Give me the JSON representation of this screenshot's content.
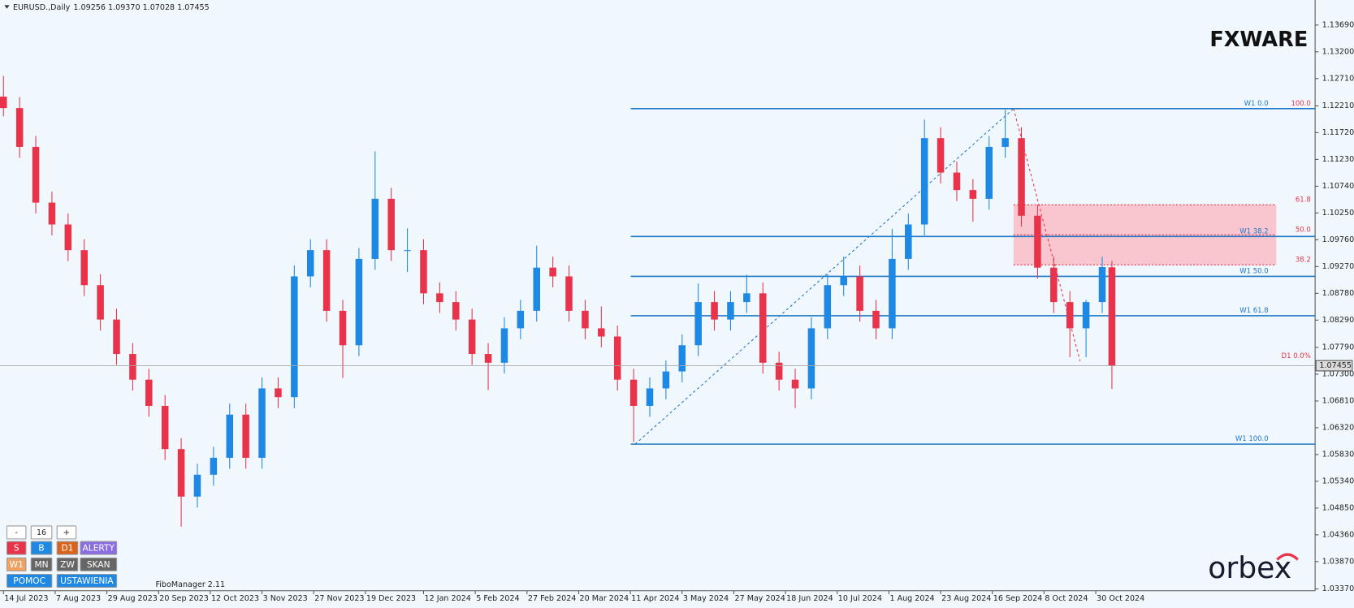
{
  "header": {
    "symbol": "EURUSD.,Daily",
    "ohlc": "1.09256 1.09370 1.07028 1.07455"
  },
  "chart_data": {
    "type": "candlestick",
    "x": [
      "2023-07-14",
      "2023-07-21",
      "2023-07-28",
      "2023-08-04",
      "2023-08-11",
      "2023-08-18",
      "2023-08-25",
      "2023-09-01",
      "2023-09-08",
      "2023-09-15",
      "2023-09-22",
      "2023-09-29",
      "2023-10-06",
      "2023-10-13",
      "2023-10-20",
      "2023-10-27",
      "2023-11-03",
      "2023-11-10",
      "2023-11-17",
      "2023-11-24",
      "2023-12-01",
      "2023-12-08",
      "2023-12-15",
      "2023-12-22",
      "2023-12-29",
      "2024-01-05",
      "2024-01-12",
      "2024-01-19",
      "2024-01-26",
      "2024-02-02",
      "2024-02-09",
      "2024-02-16",
      "2024-02-23",
      "2024-03-01",
      "2024-03-08",
      "2024-03-15",
      "2024-03-22",
      "2024-03-29",
      "2024-04-05",
      "2024-04-12",
      "2024-04-19",
      "2024-04-26",
      "2024-05-03",
      "2024-05-10",
      "2024-05-17",
      "2024-05-24",
      "2024-05-31",
      "2024-06-07",
      "2024-06-14",
      "2024-06-21",
      "2024-06-28",
      "2024-07-05",
      "2024-07-12",
      "2024-07-19",
      "2024-07-26",
      "2024-08-02",
      "2024-08-09",
      "2024-08-16",
      "2024-08-23",
      "2024-08-30",
      "2024-09-06",
      "2024-09-13",
      "2024-09-20",
      "2024-09-27",
      "2024-10-04",
      "2024-10-11",
      "2024-10-18",
      "2024-10-25",
      "2024-11-01",
      "2024-11-06"
    ],
    "open": [
      1.1238,
      1.1217,
      1.1146,
      1.1044,
      1.1004,
      1.0957,
      1.0893,
      1.083,
      1.0767,
      1.072,
      1.0672,
      1.0593,
      1.0506,
      1.0546,
      1.0577,
      1.0656,
      1.0577,
      1.0704,
      1.0688,
      1.0909,
      1.0957,
      1.0846,
      1.0783,
      1.0941,
      1.1051,
      1.0957,
      1.0957,
      1.0878,
      1.0862,
      1.083,
      1.0767,
      1.0751,
      1.0814,
      1.0846,
      1.0925,
      1.0909,
      1.0846,
      1.0814,
      1.0799,
      1.072,
      1.0672,
      1.0704,
      1.0735,
      1.0783,
      1.0862,
      1.083,
      1.0862,
      1.0878,
      1.0751,
      1.072,
      1.0704,
      1.0814,
      1.0893,
      1.0909,
      1.0846,
      1.0814,
      1.0941,
      1.1004,
      1.1162,
      1.1099,
      1.1067,
      1.1051,
      1.1146,
      1.1162,
      1.102,
      1.0925,
      1.0862,
      1.0814,
      1.0862,
      1.09256
    ],
    "high": [
      1.1276,
      1.1237,
      1.1166,
      1.1064,
      1.1024,
      1.0977,
      1.0913,
      1.085,
      1.0787,
      1.074,
      1.0692,
      1.0613,
      1.0566,
      1.0597,
      1.0676,
      1.0676,
      1.0724,
      1.0724,
      1.0929,
      1.0977,
      1.0977,
      1.0866,
      1.0961,
      1.1138,
      1.1071,
      1.0997,
      1.0977,
      1.0898,
      1.0882,
      1.085,
      1.0787,
      1.0834,
      1.0866,
      1.0965,
      1.0945,
      1.0929,
      1.0866,
      1.0854,
      1.0819,
      1.074,
      1.0724,
      1.0755,
      1.0803,
      1.0896,
      1.0882,
      1.0882,
      1.0912,
      1.0898,
      1.0771,
      1.074,
      1.0834,
      1.0913,
      1.0945,
      1.0929,
      1.0866,
      1.0996,
      1.1024,
      1.1196,
      1.1182,
      1.1119,
      1.1087,
      1.1166,
      1.1214,
      1.1182,
      1.104,
      1.0945,
      1.0882,
      1.0866,
      1.0945,
      1.0937
    ],
    "low": [
      1.1202,
      1.1126,
      1.1024,
      1.0984,
      1.0937,
      1.0873,
      1.081,
      1.0747,
      1.07,
      1.0652,
      1.0573,
      1.0451,
      1.0486,
      1.0526,
      1.0557,
      1.0557,
      1.0557,
      1.0668,
      1.0668,
      1.0889,
      1.0826,
      1.0723,
      1.0763,
      1.0921,
      1.0937,
      1.0917,
      1.0858,
      1.0842,
      1.081,
      1.0747,
      1.0701,
      1.0731,
      1.0794,
      1.0826,
      1.0889,
      1.0826,
      1.0794,
      1.0779,
      1.07,
      1.0606,
      1.0652,
      1.0684,
      1.0715,
      1.0763,
      1.081,
      1.081,
      1.0842,
      1.0731,
      1.07,
      1.0668,
      1.0684,
      1.0794,
      1.0873,
      1.0826,
      1.0794,
      1.0794,
      1.0921,
      1.0984,
      1.1079,
      1.1047,
      1.1009,
      1.1031,
      1.1126,
      1.1,
      1.0905,
      1.0842,
      1.0761,
      1.0761,
      1.0842,
      1.07028
    ],
    "close": [
      1.1217,
      1.1146,
      1.1044,
      1.1004,
      1.0957,
      1.0893,
      1.083,
      1.0767,
      1.072,
      1.0672,
      1.0593,
      1.0506,
      1.0546,
      1.0577,
      1.0656,
      1.0577,
      1.0704,
      1.0688,
      1.0909,
      1.0957,
      1.0846,
      1.0783,
      1.0941,
      1.1051,
      1.0957,
      1.0957,
      1.0878,
      1.0862,
      1.083,
      1.0767,
      1.0751,
      1.0814,
      1.0846,
      1.0925,
      1.0909,
      1.0846,
      1.0814,
      1.0799,
      1.072,
      1.0672,
      1.0704,
      1.0735,
      1.0783,
      1.0862,
      1.083,
      1.0862,
      1.0878,
      1.0751,
      1.072,
      1.0704,
      1.0814,
      1.0893,
      1.0909,
      1.0846,
      1.0814,
      1.0941,
      1.1004,
      1.1162,
      1.1099,
      1.1067,
      1.1051,
      1.1146,
      1.1162,
      1.102,
      1.0925,
      1.0862,
      1.0814,
      1.0862,
      1.0926,
      1.07455
    ],
    "colors": {
      "up": "#1e88e5",
      "down": "#e8334a"
    },
    "ylim": [
      1.03337,
      1.14148
    ],
    "yticks": [
      {
        "value": 1.1369,
        "label": "1.13690"
      },
      {
        "value": 1.132,
        "label": "1.13200"
      },
      {
        "value": 1.1271,
        "label": "1.12710"
      },
      {
        "value": 1.1221,
        "label": "1.12210"
      },
      {
        "value": 1.1172,
        "label": "1.11720"
      },
      {
        "value": 1.1123,
        "label": "1.11230"
      },
      {
        "value": 1.1074,
        "label": "1.10740"
      },
      {
        "value": 1.1025,
        "label": "1.10250"
      },
      {
        "value": 1.0976,
        "label": "1.09760"
      },
      {
        "value": 1.0927,
        "label": "1.09270"
      },
      {
        "value": 1.0878,
        "label": "1.08780"
      },
      {
        "value": 1.0829,
        "label": "1.08290"
      },
      {
        "value": 1.0779,
        "label": "1.07790"
      },
      {
        "value": 1.073,
        "label": "1.07300"
      },
      {
        "value": 1.0681,
        "label": "1.06810"
      },
      {
        "value": 1.0632,
        "label": "1.06320"
      },
      {
        "value": 1.0583,
        "label": "1.05830"
      },
      {
        "value": 1.0534,
        "label": "1.05340"
      },
      {
        "value": 1.0485,
        "label": "1.04850"
      },
      {
        "value": 1.0436,
        "label": "1.04360"
      },
      {
        "value": 1.0387,
        "label": "1.03870"
      },
      {
        "value": 1.0337,
        "label": "1.03370"
      }
    ],
    "xticks": [
      {
        "value": "2023-07-14",
        "label": "14 Jul 2023"
      },
      {
        "value": "2023-08-07",
        "label": "7 Aug 2023"
      },
      {
        "value": "2023-08-29",
        "label": "29 Aug 2023"
      },
      {
        "value": "2023-09-20",
        "label": "20 Sep 2023"
      },
      {
        "value": "2023-10-12",
        "label": "12 Oct 2023"
      },
      {
        "value": "2023-11-03",
        "label": "3 Nov 2023"
      },
      {
        "value": "2023-11-27",
        "label": "27 Nov 2023"
      },
      {
        "value": "2023-12-19",
        "label": "19 Dec 2023"
      },
      {
        "value": "2024-01-12",
        "label": "12 Jan 2024"
      },
      {
        "value": "2024-02-05",
        "label": "5 Feb 2024"
      },
      {
        "value": "2024-02-27",
        "label": "27 Feb 2024"
      },
      {
        "value": "2024-03-20",
        "label": "20 Mar 2024"
      },
      {
        "value": "2024-04-11",
        "label": "11 Apr 2024"
      },
      {
        "value": "2024-05-03",
        "label": "3 May 2024"
      },
      {
        "value": "2024-05-27",
        "label": "27 May 2024"
      },
      {
        "value": "2024-06-18",
        "label": "18 Jun 2024"
      },
      {
        "value": "2024-07-10",
        "label": "10 Jul 2024"
      },
      {
        "value": "2024-08-01",
        "label": "1 Aug 2024"
      },
      {
        "value": "2024-08-23",
        "label": "23 Aug 2024"
      },
      {
        "value": "2024-09-16",
        "label": "16 Sep 2024"
      },
      {
        "value": "2024-10-08",
        "label": "8 Oct 2024"
      },
      {
        "value": "2024-10-30",
        "label": "30 Oct 2024"
      }
    ],
    "fibonacci": [
      {
        "name": "W1",
        "color": "#1e78c8",
        "levels": [
          {
            "label": "W1 0.0",
            "value": 1.1216
          },
          {
            "label": "W1 38.2",
            "value": 1.0982
          },
          {
            "label": "W1 50.0",
            "value": 1.0909
          },
          {
            "label": "W1 61.8",
            "value": 1.0837
          },
          {
            "label": "W1 100.0",
            "value": 1.0602
          }
        ]
      },
      {
        "name": "D1",
        "color": "#e8334a",
        "zone": "#f9c6cf",
        "levels": [
          {
            "label": "100.0",
            "value": 1.1216
          },
          {
            "label": "61.8",
            "value": 1.104
          },
          {
            "label": "50.0",
            "value": 1.0985
          },
          {
            "label": "38.2",
            "value": 1.093
          },
          {
            "label": "D1 0.0%",
            "value": 1.0754
          }
        ]
      }
    ]
  },
  "logos": {
    "top": "FXWARE",
    "bottom": "orbex"
  },
  "panel": {
    "zoom": {
      "minus": "-",
      "value": 16,
      "plus": "+"
    },
    "buttons": [
      {
        "label": "S",
        "color": "#e8334a"
      },
      {
        "label": "B",
        "color": "#1e88e5"
      },
      {
        "label": "D1",
        "color": "#d9641e"
      },
      {
        "label": "ALERTY",
        "color": "#8a6de0"
      },
      {
        "label": "W1",
        "color": "#f0a060"
      },
      {
        "label": "MN",
        "color": "#666666"
      },
      {
        "label": "ZW",
        "color": "#666666"
      },
      {
        "label": "SKAN",
        "color": "#666666"
      },
      {
        "label": "POMOC",
        "color": "#1e88e5"
      },
      {
        "label": "USTAWIENIA",
        "color": "#1e88e5"
      }
    ],
    "indicator": "FiboManager 2.11"
  }
}
